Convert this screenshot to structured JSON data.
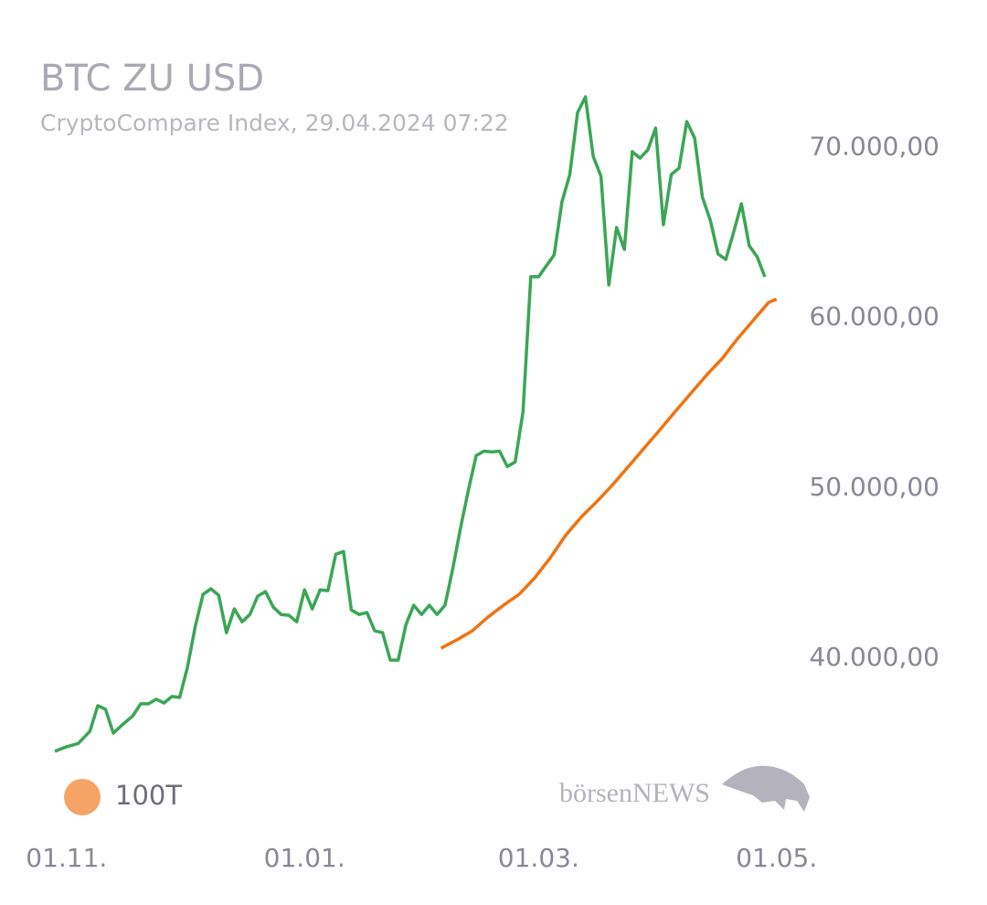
{
  "chart_data": {
    "type": "line",
    "title": "BTC ZU USD",
    "subtitle": "CryptoCompare Index, 29.04.2024 07:22",
    "watermark": "börsenNEWS",
    "xlim": [
      "29.10.",
      "02.05."
    ],
    "xticks": [
      "01.11.",
      "01.01.",
      "01.03.",
      "01.05."
    ],
    "ylim": [
      32000,
      74000
    ],
    "yticks": [
      {
        "value": 40000,
        "label": "40.000,00"
      },
      {
        "value": 50000,
        "label": "50.000,00"
      },
      {
        "value": 60000,
        "label": "60.000,00"
      },
      {
        "value": 70000,
        "label": "70.000,00"
      }
    ],
    "grid": false,
    "legend": "bottom-left",
    "series": [
      {
        "color": "#3aa655",
        "x": [
          "29.10.",
          "01.11.",
          "04.11.",
          "07.11.",
          "09.11.",
          "11.11.",
          "13.11.",
          "15.11.",
          "18.11.",
          "20.11.",
          "22.11.",
          "24.11.",
          "26.11.",
          "28.11.",
          "30.11.",
          "02.12.",
          "04.12.",
          "06.12.",
          "08.12.",
          "10.12.",
          "12.12.",
          "14.12.",
          "16.12.",
          "18.12.",
          "20.12.",
          "22.12.",
          "24.12.",
          "26.12.",
          "28.12.",
          "30.12.",
          "01.01.",
          "03.01.",
          "05.01.",
          "07.01.",
          "09.01.",
          "11.01.",
          "13.01.",
          "15.01.",
          "17.01.",
          "19.01.",
          "21.01.",
          "23.01.",
          "25.01.",
          "27.01.",
          "29.01.",
          "31.01.",
          "02.02.",
          "04.02.",
          "06.02.",
          "08.02.",
          "10.02.",
          "12.02.",
          "14.02.",
          "16.02.",
          "18.02.",
          "20.02.",
          "22.02.",
          "24.02.",
          "26.02.",
          "28.02.",
          "01.03.",
          "03.03.",
          "05.03.",
          "07.03.",
          "09.03.",
          "11.03.",
          "13.03.",
          "15.03.",
          "17.03.",
          "19.03.",
          "21.03.",
          "23.03.",
          "25.03.",
          "27.03.",
          "29.03.",
          "31.03.",
          "02.04.",
          "04.04.",
          "06.04.",
          "08.04.",
          "10.04.",
          "12.04.",
          "14.04.",
          "16.04.",
          "18.04.",
          "20.04.",
          "22.04.",
          "24.04.",
          "26.04.",
          "28.04."
        ],
        "values": [
          34530,
          34800,
          34990,
          35710,
          37210,
          37000,
          35600,
          36030,
          36620,
          37320,
          37320,
          37590,
          37370,
          37750,
          37700,
          39460,
          41880,
          43750,
          44080,
          43700,
          41500,
          42900,
          42140,
          42570,
          43650,
          43910,
          43000,
          42570,
          42520,
          42140,
          44020,
          42900,
          44020,
          43970,
          46110,
          46270,
          42840,
          42570,
          42680,
          41610,
          41500,
          39890,
          39890,
          41980,
          43110,
          42570,
          43110,
          42570,
          43110,
          45250,
          47670,
          49870,
          51900,
          52170,
          52120,
          52170,
          51260,
          51530,
          54480,
          62410,
          62410,
          63060,
          63700,
          66810,
          68420,
          72060,
          72980,
          69490,
          68310,
          61930,
          65310,
          64020,
          69760,
          69380,
          69870,
          71150,
          65470,
          68420,
          68790,
          71530,
          70560,
          67080,
          65740,
          63750,
          63430,
          65040,
          66700,
          64240,
          63590,
          62410
        ]
      },
      {
        "name": "100T",
        "color": "#f07312",
        "x": [
          "05.02.",
          "09.02.",
          "13.02.",
          "17.02.",
          "21.02.",
          "25.02.",
          "29.02.",
          "04.03.",
          "08.03.",
          "12.03.",
          "16.03.",
          "20.03.",
          "24.03.",
          "28.03.",
          "01.04.",
          "05.04.",
          "09.04.",
          "13.04.",
          "17.04.",
          "21.04.",
          "25.04.",
          "29.04.",
          "01.05."
        ],
        "values": [
          40590,
          41070,
          41610,
          42410,
          43110,
          43750,
          44720,
          45900,
          47240,
          48310,
          49220,
          50190,
          51260,
          52330,
          53400,
          54480,
          55550,
          56620,
          57590,
          58770,
          59840,
          60910,
          61100
        ]
      }
    ]
  }
}
